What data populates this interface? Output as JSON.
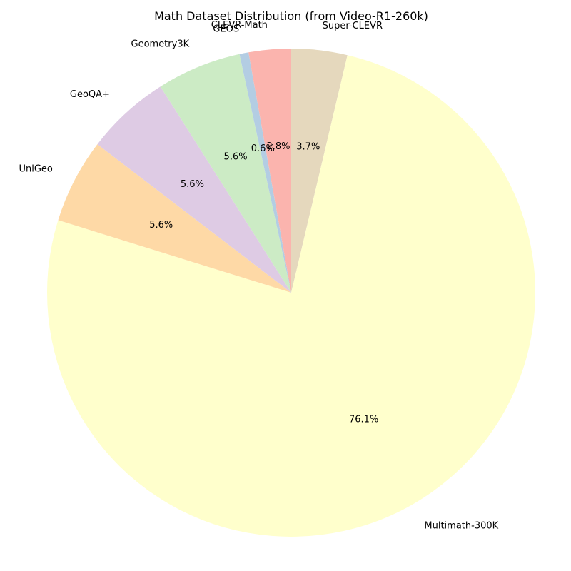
{
  "chart_data": {
    "type": "pie",
    "title": "Math Dataset Distribution (from Video-R1-260k)",
    "slices": [
      {
        "label": "Super-CLEVR",
        "value": 3.7,
        "pct_label": "3.7%",
        "color": "#e5d8bd"
      },
      {
        "label": "Multimath-300K",
        "value": 76.1,
        "pct_label": "76.1%",
        "color": "#ffffcc"
      },
      {
        "label": "UniGeo",
        "value": 5.6,
        "pct_label": "5.6%",
        "color": "#fed9a6"
      },
      {
        "label": "GeoQA+",
        "value": 5.6,
        "pct_label": "5.6%",
        "color": "#decbe4"
      },
      {
        "label": "Geometry3K",
        "value": 5.6,
        "pct_label": "5.6%",
        "color": "#ccebc5"
      },
      {
        "label": "GEOS",
        "value": 0.6,
        "pct_label": "0.6%",
        "color": "#b3cde3"
      },
      {
        "label": "CLEVR-Math",
        "value": 2.8,
        "pct_label": "2.8%",
        "color": "#fbb4ae"
      }
    ],
    "start_angle_deg": 90,
    "direction": "clockwise-from-top"
  }
}
